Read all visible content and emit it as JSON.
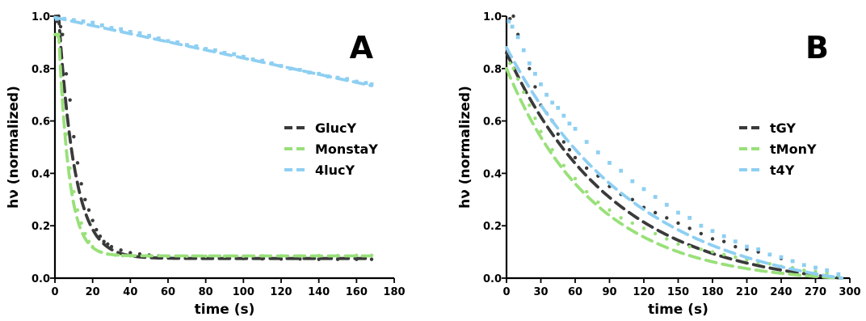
{
  "chart_data": [
    {
      "type": "scatter",
      "panel_label": "A",
      "xlabel": "time (s)",
      "ylabel": "hν (normalized)",
      "xlim": [
        0,
        180
      ],
      "ylim": [
        0,
        1
      ],
      "xticks": [
        0,
        20,
        40,
        60,
        80,
        100,
        120,
        140,
        160,
        180
      ],
      "yticks": [
        0.0,
        0.2,
        0.4,
        0.6,
        0.8,
        1.0
      ],
      "ytick_labels": [
        "0.0",
        "0.2",
        "0.4",
        "0.6",
        "0.8",
        "1.0"
      ],
      "grid": false,
      "legend_position": "right-center",
      "series": [
        {
          "name": "GlucY",
          "color": "#3a3a3a",
          "fit": {
            "model": "exponential",
            "plateau": 0.075,
            "tau": 8.5,
            "t0": 2,
            "y0": 1.0
          },
          "points": [
            [
              1,
              0.98
            ],
            [
              2,
              1.0
            ],
            [
              3,
              0.96
            ],
            [
              4,
              0.93
            ],
            [
              6,
              0.78
            ],
            [
              8,
              0.68
            ],
            [
              10,
              0.54
            ],
            [
              12,
              0.44
            ],
            [
              14,
              0.36
            ],
            [
              16,
              0.3
            ],
            [
              18,
              0.26
            ],
            [
              20,
              0.22
            ],
            [
              22,
              0.185
            ],
            [
              24,
              0.16
            ],
            [
              26,
              0.14
            ],
            [
              28,
              0.13
            ],
            [
              30,
              0.12
            ],
            [
              35,
              0.107
            ],
            [
              40,
              0.097
            ],
            [
              45,
              0.092
            ],
            [
              50,
              0.088
            ],
            [
              55,
              0.085
            ],
            [
              60,
              0.082
            ],
            [
              70,
              0.079
            ],
            [
              80,
              0.077
            ],
            [
              90,
              0.076
            ],
            [
              100,
              0.075
            ],
            [
              110,
              0.074
            ],
            [
              120,
              0.073
            ],
            [
              130,
              0.073
            ],
            [
              140,
              0.072
            ],
            [
              150,
              0.072
            ],
            [
              160,
              0.072
            ],
            [
              168,
              0.072
            ]
          ]
        },
        {
          "name": "MonstaY",
          "color": "#99e07a",
          "fit": {
            "model": "exponential",
            "plateau": 0.085,
            "tau": 5.5,
            "t0": 2,
            "y0": 0.93
          },
          "points": [
            [
              1,
              0.93
            ],
            [
              2,
              0.93
            ],
            [
              4,
              0.7
            ],
            [
              6,
              0.55
            ],
            [
              8,
              0.42
            ],
            [
              10,
              0.33
            ],
            [
              12,
              0.26
            ],
            [
              14,
              0.21
            ],
            [
              16,
              0.17
            ],
            [
              18,
              0.14
            ],
            [
              20,
              0.12
            ],
            [
              24,
              0.1
            ],
            [
              28,
              0.092
            ],
            [
              32,
              0.088
            ],
            [
              36,
              0.086
            ],
            [
              40,
              0.085
            ],
            [
              50,
              0.084
            ],
            [
              60,
              0.084
            ],
            [
              70,
              0.084
            ],
            [
              80,
              0.084
            ],
            [
              90,
              0.084
            ],
            [
              100,
              0.084
            ],
            [
              110,
              0.085
            ],
            [
              120,
              0.085
            ],
            [
              130,
              0.085
            ],
            [
              140,
              0.086
            ],
            [
              150,
              0.086
            ],
            [
              160,
              0.087
            ],
            [
              168,
              0.087
            ]
          ]
        },
        {
          "name": "4lucY",
          "color": "#8ecff2",
          "fit": {
            "model": "linear",
            "y0": 0.995,
            "slope": -0.00155
          },
          "points": [
            [
              1,
              0.99
            ],
            [
              5,
              0.99
            ],
            [
              10,
              0.985
            ],
            [
              15,
              0.98
            ],
            [
              20,
              0.975
            ],
            [
              25,
              0.965
            ],
            [
              30,
              0.955
            ],
            [
              35,
              0.95
            ],
            [
              40,
              0.94
            ],
            [
              45,
              0.935
            ],
            [
              50,
              0.925
            ],
            [
              55,
              0.915
            ],
            [
              60,
              0.905
            ],
            [
              65,
              0.9
            ],
            [
              70,
              0.89
            ],
            [
              75,
              0.885
            ],
            [
              80,
              0.875
            ],
            [
              85,
              0.87
            ],
            [
              90,
              0.86
            ],
            [
              95,
              0.855
            ],
            [
              100,
              0.845
            ],
            [
              105,
              0.835
            ],
            [
              110,
              0.83
            ],
            [
              115,
              0.82
            ],
            [
              120,
              0.81
            ],
            [
              125,
              0.8
            ],
            [
              130,
              0.795
            ],
            [
              135,
              0.785
            ],
            [
              140,
              0.78
            ],
            [
              145,
              0.77
            ],
            [
              150,
              0.765
            ],
            [
              155,
              0.76
            ],
            [
              160,
              0.75
            ],
            [
              165,
              0.745
            ],
            [
              168,
              0.74
            ]
          ]
        }
      ]
    },
    {
      "type": "scatter",
      "panel_label": "B",
      "xlabel": "time (s)",
      "ylabel": "hν (normalized)",
      "xlim": [
        0,
        300
      ],
      "ylim": [
        0,
        1
      ],
      "xticks": [
        0,
        30,
        60,
        90,
        120,
        150,
        180,
        210,
        240,
        270,
        300
      ],
      "yticks": [
        0.0,
        0.2,
        0.4,
        0.6,
        0.8,
        1.0
      ],
      "ytick_labels": [
        "0.0",
        "0.2",
        "0.4",
        "0.6",
        "0.8",
        "1.0"
      ],
      "grid": false,
      "legend_position": "right-center",
      "series": [
        {
          "name": "tGY",
          "color": "#3a3a3a",
          "fit": {
            "model": "decay_to_zero",
            "y0": 0.86,
            "tau": 95,
            "tend": 293
          },
          "points": [
            [
              3,
              0.99
            ],
            [
              6,
              1.0
            ],
            [
              10,
              0.93
            ],
            [
              15,
              0.87
            ],
            [
              20,
              0.8
            ],
            [
              25,
              0.73
            ],
            [
              30,
              0.66
            ],
            [
              35,
              0.63
            ],
            [
              40,
              0.6
            ],
            [
              45,
              0.55
            ],
            [
              50,
              0.52
            ],
            [
              55,
              0.49
            ],
            [
              60,
              0.46
            ],
            [
              70,
              0.42
            ],
            [
              80,
              0.39
            ],
            [
              90,
              0.35
            ],
            [
              100,
              0.32
            ],
            [
              110,
              0.3
            ],
            [
              120,
              0.27
            ],
            [
              130,
              0.25
            ],
            [
              140,
              0.23
            ],
            [
              150,
              0.21
            ],
            [
              160,
              0.19
            ],
            [
              170,
              0.17
            ],
            [
              180,
              0.15
            ],
            [
              190,
              0.14
            ],
            [
              200,
              0.12
            ],
            [
              210,
              0.11
            ],
            [
              220,
              0.1
            ],
            [
              230,
              0.09
            ],
            [
              240,
              0.075
            ],
            [
              250,
              0.065
            ],
            [
              260,
              0.05
            ],
            [
              270,
              0.04
            ],
            [
              280,
              0.03
            ],
            [
              290,
              0.015
            ]
          ]
        },
        {
          "name": "tMonY",
          "color": "#99e07a",
          "fit": {
            "model": "decay_to_zero",
            "y0": 0.8,
            "tau": 78,
            "tend": 293
          },
          "points": [
            [
              3,
              0.82
            ],
            [
              6,
              0.8
            ],
            [
              10,
              0.76
            ],
            [
              15,
              0.71
            ],
            [
              20,
              0.66
            ],
            [
              25,
              0.61
            ],
            [
              30,
              0.56
            ],
            [
              40,
              0.49
            ],
            [
              50,
              0.43
            ],
            [
              60,
              0.38
            ],
            [
              70,
              0.33
            ],
            [
              80,
              0.29
            ],
            [
              90,
              0.26
            ],
            [
              100,
              0.23
            ],
            [
              110,
              0.21
            ],
            [
              120,
              0.19
            ],
            [
              130,
              0.17
            ],
            [
              140,
              0.15
            ],
            [
              150,
              0.13
            ],
            [
              160,
              0.12
            ],
            [
              170,
              0.11
            ],
            [
              180,
              0.1
            ],
            [
              190,
              0.09
            ],
            [
              200,
              0.08
            ],
            [
              210,
              0.07
            ],
            [
              220,
              0.06
            ],
            [
              230,
              0.055
            ],
            [
              240,
              0.045
            ],
            [
              250,
              0.04
            ],
            [
              260,
              0.03
            ],
            [
              270,
              0.025
            ],
            [
              280,
              0.02
            ],
            [
              290,
              0.01
            ]
          ]
        },
        {
          "name": "t4Y",
          "color": "#8ecff2",
          "fit": {
            "model": "decay_to_zero",
            "y0": 0.88,
            "tau": 115,
            "tend": 293
          },
          "points": [
            [
              2,
              0.98
            ],
            [
              5,
              0.96
            ],
            [
              10,
              0.92
            ],
            [
              15,
              0.87
            ],
            [
              20,
              0.82
            ],
            [
              25,
              0.78
            ],
            [
              30,
              0.74
            ],
            [
              35,
              0.7
            ],
            [
              40,
              0.67
            ],
            [
              45,
              0.65
            ],
            [
              50,
              0.62
            ],
            [
              55,
              0.59
            ],
            [
              60,
              0.57
            ],
            [
              70,
              0.52
            ],
            [
              80,
              0.48
            ],
            [
              90,
              0.44
            ],
            [
              100,
              0.41
            ],
            [
              110,
              0.37
            ],
            [
              120,
              0.34
            ],
            [
              130,
              0.31
            ],
            [
              140,
              0.28
            ],
            [
              150,
              0.25
            ],
            [
              160,
              0.23
            ],
            [
              170,
              0.2
            ],
            [
              180,
              0.18
            ],
            [
              190,
              0.16
            ],
            [
              200,
              0.14
            ],
            [
              210,
              0.12
            ],
            [
              220,
              0.11
            ],
            [
              230,
              0.09
            ],
            [
              240,
              0.08
            ],
            [
              250,
              0.065
            ],
            [
              260,
              0.05
            ],
            [
              270,
              0.04
            ],
            [
              280,
              0.03
            ],
            [
              290,
              0.015
            ]
          ]
        }
      ]
    }
  ]
}
